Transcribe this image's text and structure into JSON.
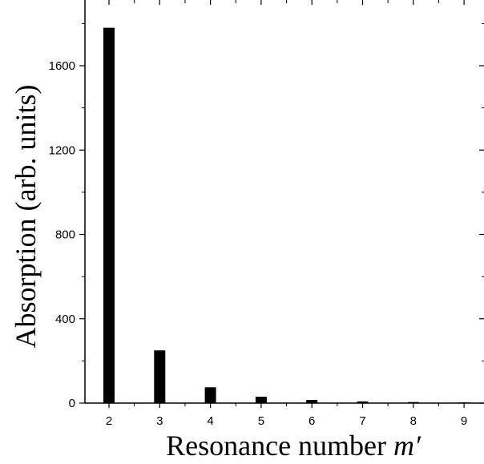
{
  "chart_data": {
    "type": "bar",
    "categories": [
      "2",
      "3",
      "4",
      "5",
      "6",
      "7",
      "8",
      "9"
    ],
    "values": [
      1780,
      250,
      75,
      30,
      15,
      8,
      5,
      3
    ],
    "title": "",
    "xlabel": "Resonance number ",
    "xlabel_italic": "m′",
    "ylabel": "Absorption (arb. units)",
    "ylim": [
      0,
      1900
    ],
    "yticks": [
      0,
      400,
      800,
      1200,
      1600
    ],
    "ytick_labels": [
      "0",
      "400",
      "800",
      "1200",
      "1600"
    ],
    "grid": false,
    "legend": "none",
    "bar_color": "#000000",
    "axis_color": "#000000"
  }
}
